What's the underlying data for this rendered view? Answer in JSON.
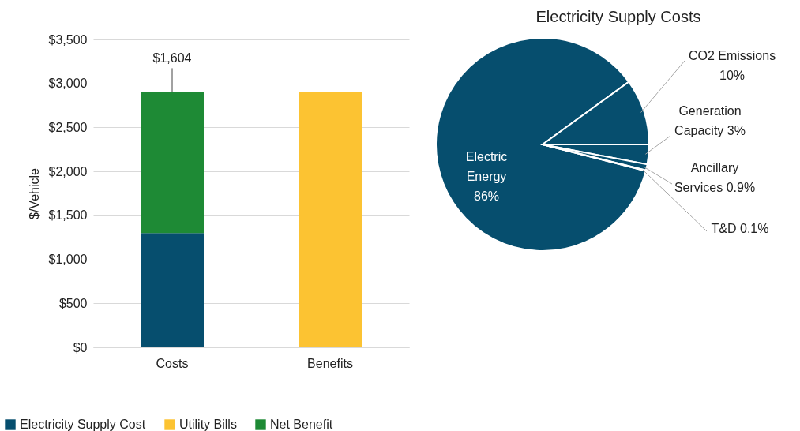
{
  "chart_data": [
    {
      "type": "bar",
      "stacked": true,
      "categories": [
        "Costs",
        "Benefits"
      ],
      "ylabel": "$/Vehicle",
      "ylim": [
        0,
        3500
      ],
      "yticks": [
        {
          "value": 0,
          "label": "$0"
        },
        {
          "value": 500,
          "label": "$500"
        },
        {
          "value": 1000,
          "label": "$1,000"
        },
        {
          "value": 1500,
          "label": "$1,500"
        },
        {
          "value": 2000,
          "label": "$2,000"
        },
        {
          "value": 2500,
          "label": "$2,500"
        },
        {
          "value": 3000,
          "label": "$3,000"
        },
        {
          "value": 3500,
          "label": "$3,500"
        }
      ],
      "grid": "y",
      "legend": "bottom",
      "series": [
        {
          "name": "Electricity Supply Cost",
          "color": "#064e6e",
          "values": [
            1300,
            null
          ]
        },
        {
          "name": "Utility Bills",
          "color": "#fcc332",
          "values": [
            null,
            2900
          ]
        },
        {
          "name": "Net Benefit",
          "color": "#1e8a35",
          "values": [
            1604,
            null
          ],
          "value_labels": [
            "$1,604",
            null
          ]
        }
      ]
    },
    {
      "type": "pie",
      "title": "Electricity Supply Costs",
      "categories": [
        "Electric Energy",
        "CO2 Emissions",
        "Generation Capacity",
        "Ancillary Services",
        "T&D"
      ],
      "values": [
        86,
        10,
        3,
        0.9,
        0.1
      ],
      "colors": [
        "#064e6e",
        "#064e6e",
        "#064e6e",
        "#064e6e",
        "#064e6e"
      ],
      "value_labels": [
        "86%",
        "10%",
        "3%",
        "0.9%",
        "0.1%"
      ]
    }
  ]
}
